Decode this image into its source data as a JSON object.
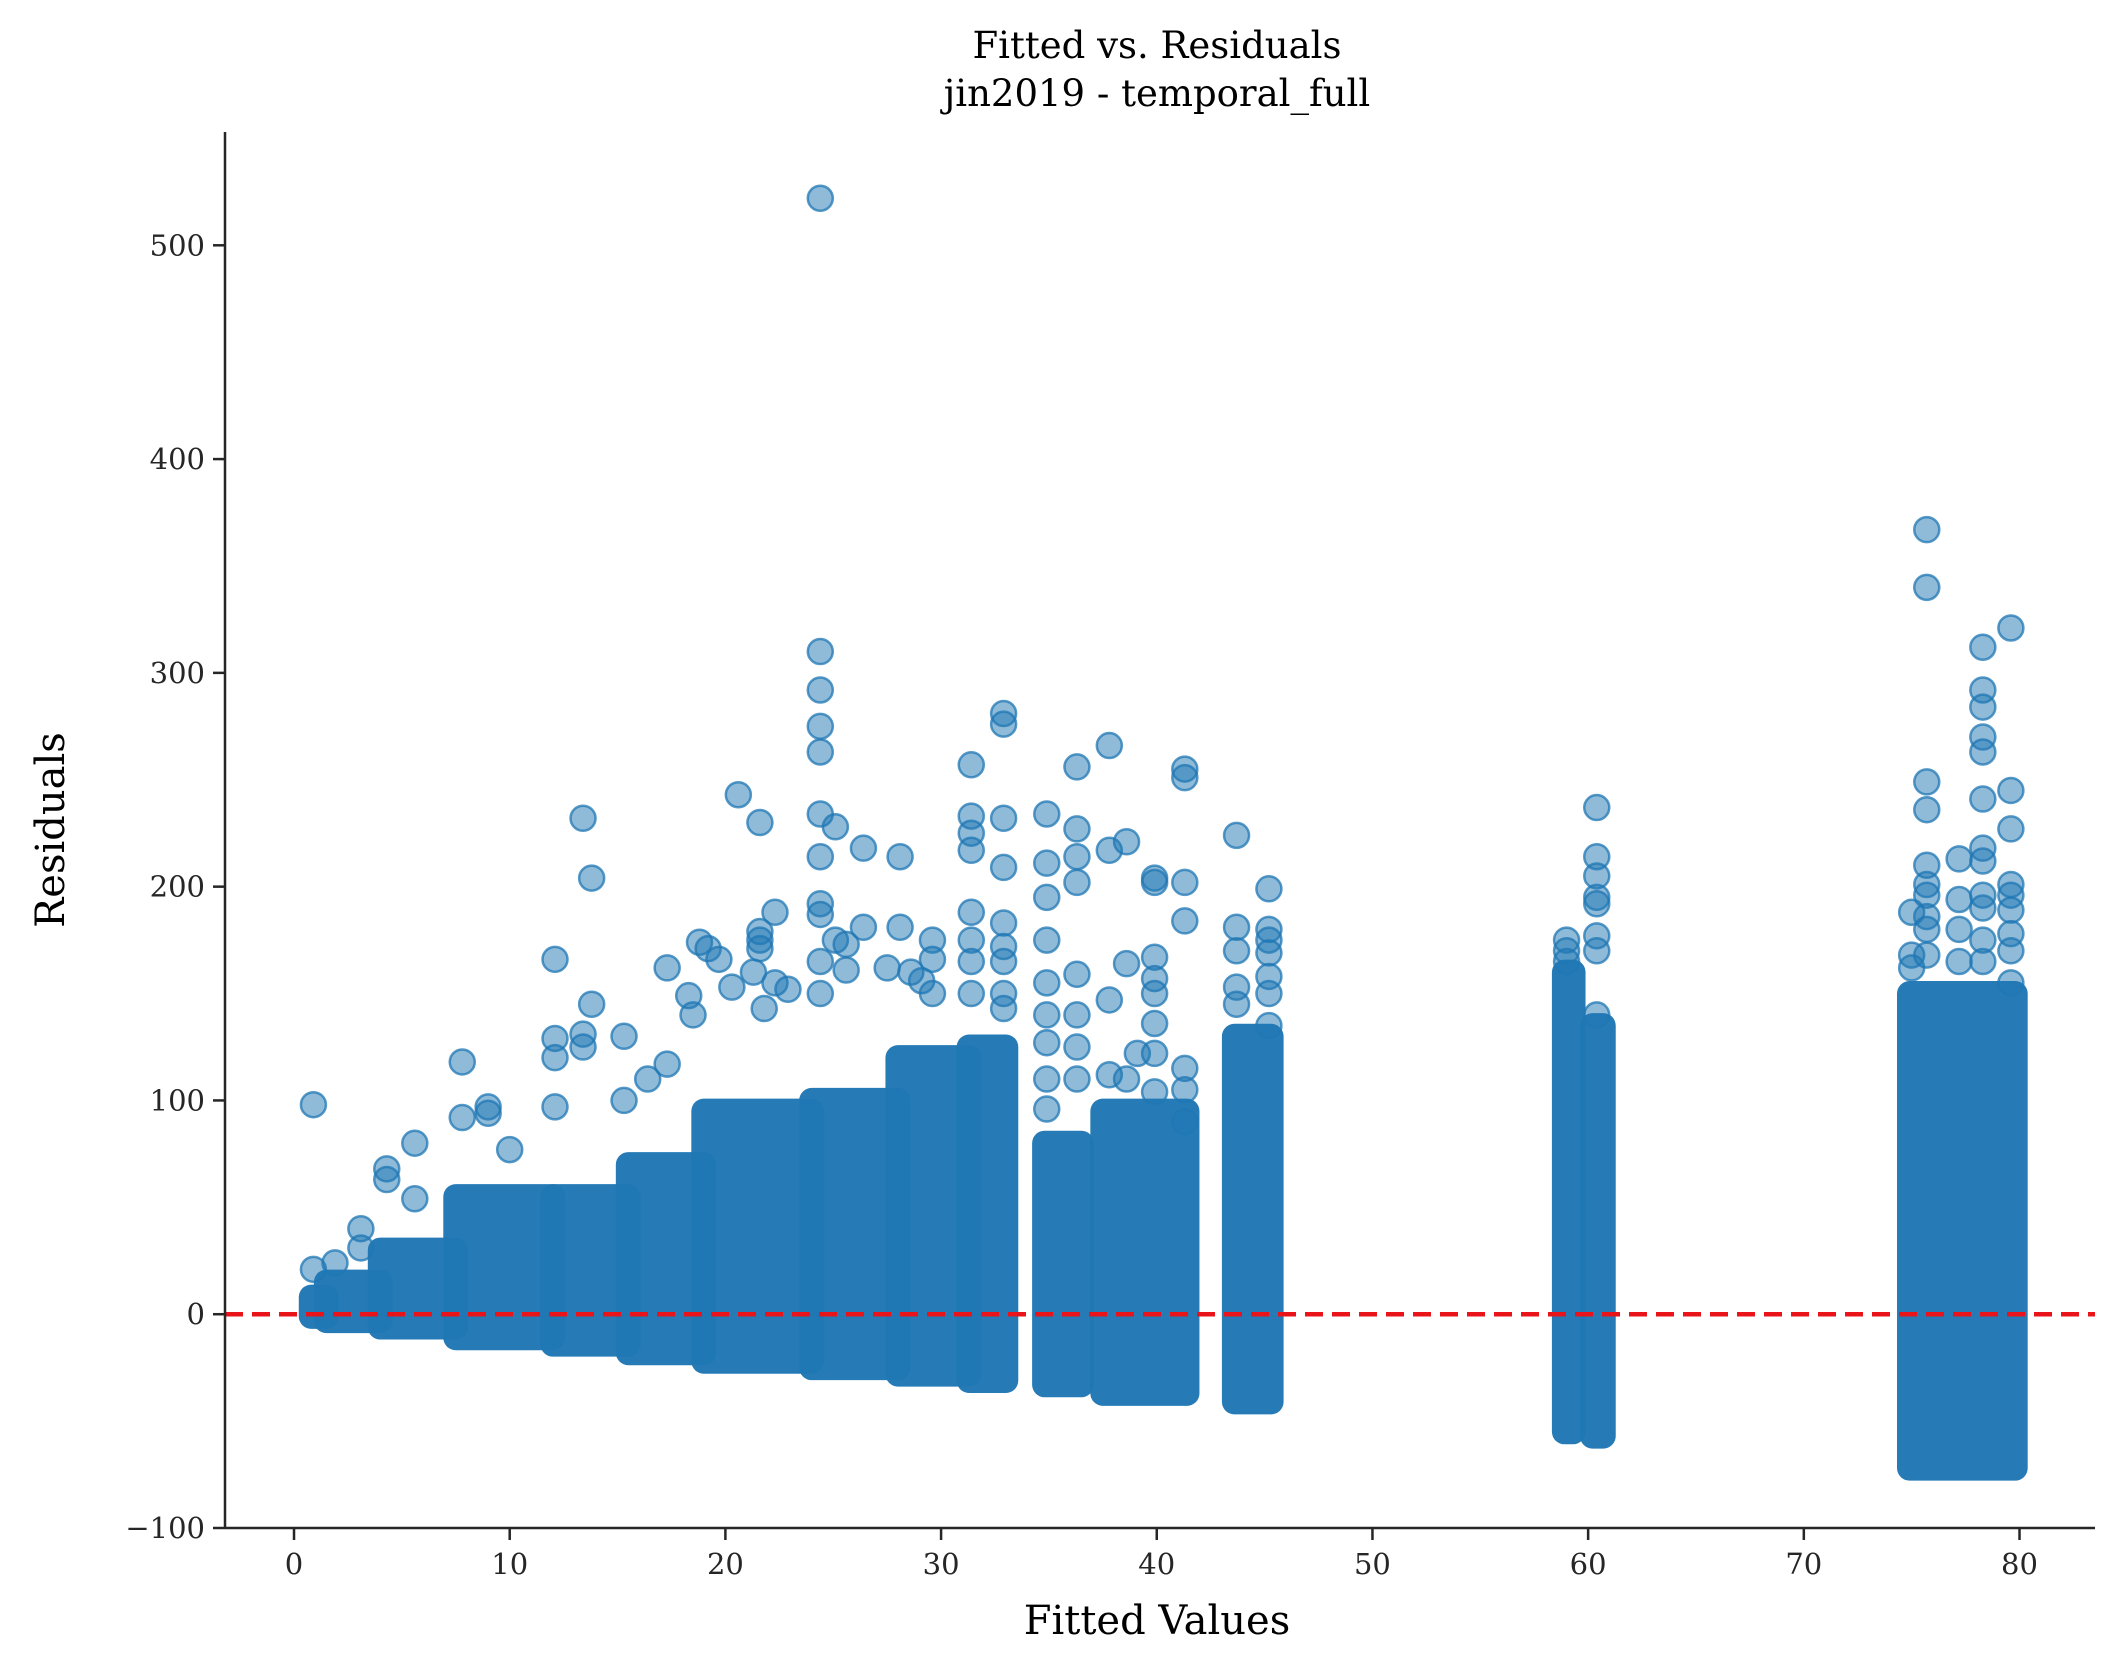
{
  "chart_data": {
    "type": "scatter",
    "title": "Fitted vs. Residuals",
    "subtitle": "jin2019 - temporal_full",
    "xlabel": "Fitted Values",
    "ylabel": "Residuals",
    "xlim": [
      -3.2,
      83.5
    ],
    "ylim": [
      -100,
      553
    ],
    "xticks": [
      0,
      10,
      20,
      30,
      40,
      50,
      60,
      70,
      80
    ],
    "yticks": [
      -100,
      0,
      100,
      200,
      300,
      400,
      500
    ],
    "xtick_labels": [
      "0",
      "10",
      "20",
      "30",
      "40",
      "50",
      "60",
      "70",
      "80"
    ],
    "ytick_labels": [
      "−100",
      "0",
      "100",
      "200",
      "300",
      "400",
      "500"
    ],
    "grid": false,
    "reference_line": {
      "y": 0,
      "style": "dashed",
      "color": "#e8141a"
    },
    "marker_color": "#1f77b4",
    "marker_alpha": 0.5,
    "dense_bands": [
      {
        "x0": 0.8,
        "x1": 1.5,
        "ymin": -1,
        "ymax": 8
      },
      {
        "x0": 1.5,
        "x1": 4.0,
        "ymin": -3,
        "ymax": 15
      },
      {
        "x0": 4.0,
        "x1": 7.5,
        "ymin": -6,
        "ymax": 30
      },
      {
        "x0": 7.5,
        "x1": 12.0,
        "ymin": -11,
        "ymax": 55
      },
      {
        "x0": 12.0,
        "x1": 15.5,
        "ymin": -14,
        "ymax": 55
      },
      {
        "x0": 15.5,
        "x1": 19.0,
        "ymin": -18,
        "ymax": 70
      },
      {
        "x0": 19.0,
        "x1": 24.0,
        "ymin": -22,
        "ymax": 95
      },
      {
        "x0": 24.0,
        "x1": 28.0,
        "ymin": -25,
        "ymax": 100
      },
      {
        "x0": 28.0,
        "x1": 31.3,
        "ymin": -28,
        "ymax": 120
      },
      {
        "x0": 31.3,
        "x1": 33.0,
        "ymin": -31,
        "ymax": 125
      },
      {
        "x0": 34.8,
        "x1": 36.5,
        "ymin": -33,
        "ymax": 80
      },
      {
        "x0": 37.5,
        "x1": 41.4,
        "ymin": -37,
        "ymax": 95
      },
      {
        "x0": 43.6,
        "x1": 45.3,
        "ymin": -41,
        "ymax": 130
      },
      {
        "x0": 58.9,
        "x1": 59.3,
        "ymin": -55,
        "ymax": 160
      },
      {
        "x0": 60.2,
        "x1": 60.7,
        "ymin": -57,
        "ymax": 135
      },
      {
        "x0": 74.9,
        "x1": 79.8,
        "ymin": -72,
        "ymax": 150
      }
    ],
    "points": [
      {
        "x": 0.9,
        "y": 98
      },
      {
        "x": 0.9,
        "y": 21
      },
      {
        "x": 1.9,
        "y": 24
      },
      {
        "x": 3.1,
        "y": 40
      },
      {
        "x": 3.1,
        "y": 31
      },
      {
        "x": 4.3,
        "y": 68
      },
      {
        "x": 4.3,
        "y": 63
      },
      {
        "x": 5.6,
        "y": 80
      },
      {
        "x": 5.6,
        "y": 54
      },
      {
        "x": 7.8,
        "y": 118
      },
      {
        "x": 7.8,
        "y": 92
      },
      {
        "x": 9.0,
        "y": 97
      },
      {
        "x": 9.0,
        "y": 94
      },
      {
        "x": 10.0,
        "y": 77
      },
      {
        "x": 12.1,
        "y": 166
      },
      {
        "x": 12.1,
        "y": 129
      },
      {
        "x": 12.1,
        "y": 120
      },
      {
        "x": 12.1,
        "y": 97
      },
      {
        "x": 13.4,
        "y": 232
      },
      {
        "x": 13.4,
        "y": 131
      },
      {
        "x": 13.4,
        "y": 125
      },
      {
        "x": 13.8,
        "y": 204
      },
      {
        "x": 13.8,
        "y": 145
      },
      {
        "x": 15.3,
        "y": 130
      },
      {
        "x": 15.3,
        "y": 100
      },
      {
        "x": 16.4,
        "y": 110
      },
      {
        "x": 17.3,
        "y": 162
      },
      {
        "x": 17.3,
        "y": 117
      },
      {
        "x": 18.3,
        "y": 149
      },
      {
        "x": 18.5,
        "y": 140
      },
      {
        "x": 18.8,
        "y": 174
      },
      {
        "x": 19.2,
        "y": 171
      },
      {
        "x": 19.7,
        "y": 166
      },
      {
        "x": 20.3,
        "y": 153
      },
      {
        "x": 20.6,
        "y": 243
      },
      {
        "x": 21.6,
        "y": 230
      },
      {
        "x": 21.6,
        "y": 179
      },
      {
        "x": 21.6,
        "y": 175
      },
      {
        "x": 21.6,
        "y": 171
      },
      {
        "x": 21.3,
        "y": 160
      },
      {
        "x": 22.3,
        "y": 188
      },
      {
        "x": 22.3,
        "y": 155
      },
      {
        "x": 22.9,
        "y": 152
      },
      {
        "x": 21.8,
        "y": 143
      },
      {
        "x": 24.4,
        "y": 522
      },
      {
        "x": 24.4,
        "y": 310
      },
      {
        "x": 24.4,
        "y": 292
      },
      {
        "x": 24.4,
        "y": 275
      },
      {
        "x": 24.4,
        "y": 263
      },
      {
        "x": 24.4,
        "y": 234
      },
      {
        "x": 24.4,
        "y": 214
      },
      {
        "x": 24.4,
        "y": 192
      },
      {
        "x": 24.4,
        "y": 187
      },
      {
        "x": 24.4,
        "y": 165
      },
      {
        "x": 24.4,
        "y": 150
      },
      {
        "x": 25.1,
        "y": 228
      },
      {
        "x": 25.1,
        "y": 175
      },
      {
        "x": 25.6,
        "y": 173
      },
      {
        "x": 25.6,
        "y": 161
      },
      {
        "x": 26.4,
        "y": 218
      },
      {
        "x": 26.4,
        "y": 181
      },
      {
        "x": 27.5,
        "y": 162
      },
      {
        "x": 28.1,
        "y": 214
      },
      {
        "x": 28.1,
        "y": 181
      },
      {
        "x": 28.6,
        "y": 160
      },
      {
        "x": 29.1,
        "y": 156
      },
      {
        "x": 29.6,
        "y": 175
      },
      {
        "x": 29.6,
        "y": 166
      },
      {
        "x": 29.6,
        "y": 150
      },
      {
        "x": 31.4,
        "y": 257
      },
      {
        "x": 31.4,
        "y": 233
      },
      {
        "x": 31.4,
        "y": 225
      },
      {
        "x": 31.4,
        "y": 217
      },
      {
        "x": 31.4,
        "y": 188
      },
      {
        "x": 31.4,
        "y": 175
      },
      {
        "x": 31.4,
        "y": 165
      },
      {
        "x": 31.4,
        "y": 150
      },
      {
        "x": 32.9,
        "y": 281
      },
      {
        "x": 32.9,
        "y": 276
      },
      {
        "x": 32.9,
        "y": 232
      },
      {
        "x": 32.9,
        "y": 209
      },
      {
        "x": 32.9,
        "y": 183
      },
      {
        "x": 32.9,
        "y": 172
      },
      {
        "x": 32.9,
        "y": 165
      },
      {
        "x": 32.9,
        "y": 150
      },
      {
        "x": 32.9,
        "y": 143
      },
      {
        "x": 34.9,
        "y": 234
      },
      {
        "x": 34.9,
        "y": 211
      },
      {
        "x": 34.9,
        "y": 195
      },
      {
        "x": 34.9,
        "y": 175
      },
      {
        "x": 34.9,
        "y": 155
      },
      {
        "x": 34.9,
        "y": 140
      },
      {
        "x": 34.9,
        "y": 127
      },
      {
        "x": 34.9,
        "y": 110
      },
      {
        "x": 34.9,
        "y": 96
      },
      {
        "x": 36.3,
        "y": 256
      },
      {
        "x": 36.3,
        "y": 227
      },
      {
        "x": 36.3,
        "y": 214
      },
      {
        "x": 36.3,
        "y": 202
      },
      {
        "x": 36.3,
        "y": 159
      },
      {
        "x": 36.3,
        "y": 140
      },
      {
        "x": 36.3,
        "y": 125
      },
      {
        "x": 36.3,
        "y": 110
      },
      {
        "x": 37.8,
        "y": 266
      },
      {
        "x": 37.8,
        "y": 217
      },
      {
        "x": 37.8,
        "y": 147
      },
      {
        "x": 37.8,
        "y": 112
      },
      {
        "x": 38.6,
        "y": 221
      },
      {
        "x": 38.6,
        "y": 164
      },
      {
        "x": 38.6,
        "y": 110
      },
      {
        "x": 39.1,
        "y": 122
      },
      {
        "x": 39.9,
        "y": 204
      },
      {
        "x": 39.9,
        "y": 202
      },
      {
        "x": 39.9,
        "y": 167
      },
      {
        "x": 39.9,
        "y": 157
      },
      {
        "x": 39.9,
        "y": 150
      },
      {
        "x": 39.9,
        "y": 136
      },
      {
        "x": 39.9,
        "y": 122
      },
      {
        "x": 39.9,
        "y": 104
      },
      {
        "x": 41.3,
        "y": 255
      },
      {
        "x": 41.3,
        "y": 251
      },
      {
        "x": 41.3,
        "y": 202
      },
      {
        "x": 41.3,
        "y": 184
      },
      {
        "x": 41.3,
        "y": 115
      },
      {
        "x": 41.3,
        "y": 105
      },
      {
        "x": 41.3,
        "y": 90
      },
      {
        "x": 43.7,
        "y": 224
      },
      {
        "x": 43.7,
        "y": 181
      },
      {
        "x": 43.7,
        "y": 170
      },
      {
        "x": 43.7,
        "y": 153
      },
      {
        "x": 43.7,
        "y": 145
      },
      {
        "x": 45.2,
        "y": 199
      },
      {
        "x": 45.2,
        "y": 180
      },
      {
        "x": 45.2,
        "y": 175
      },
      {
        "x": 45.2,
        "y": 169
      },
      {
        "x": 45.2,
        "y": 158
      },
      {
        "x": 45.2,
        "y": 150
      },
      {
        "x": 45.2,
        "y": 135
      },
      {
        "x": 59.0,
        "y": 175
      },
      {
        "x": 59.0,
        "y": 170
      },
      {
        "x": 59.0,
        "y": 165
      },
      {
        "x": 60.4,
        "y": 237
      },
      {
        "x": 60.4,
        "y": 214
      },
      {
        "x": 60.4,
        "y": 205
      },
      {
        "x": 60.4,
        "y": 195
      },
      {
        "x": 60.4,
        "y": 192
      },
      {
        "x": 60.4,
        "y": 177
      },
      {
        "x": 60.4,
        "y": 170
      },
      {
        "x": 60.4,
        "y": 140
      },
      {
        "x": 75.0,
        "y": 188
      },
      {
        "x": 75.0,
        "y": 168
      },
      {
        "x": 75.0,
        "y": 162
      },
      {
        "x": 75.7,
        "y": 367
      },
      {
        "x": 75.7,
        "y": 340
      },
      {
        "x": 75.7,
        "y": 249
      },
      {
        "x": 75.7,
        "y": 236
      },
      {
        "x": 75.7,
        "y": 210
      },
      {
        "x": 75.7,
        "y": 201
      },
      {
        "x": 75.7,
        "y": 196
      },
      {
        "x": 75.7,
        "y": 186
      },
      {
        "x": 75.7,
        "y": 180
      },
      {
        "x": 75.7,
        "y": 168
      },
      {
        "x": 77.2,
        "y": 213
      },
      {
        "x": 77.2,
        "y": 194
      },
      {
        "x": 77.2,
        "y": 180
      },
      {
        "x": 77.2,
        "y": 165
      },
      {
        "x": 78.3,
        "y": 312
      },
      {
        "x": 78.3,
        "y": 292
      },
      {
        "x": 78.3,
        "y": 284
      },
      {
        "x": 78.3,
        "y": 270
      },
      {
        "x": 78.3,
        "y": 263
      },
      {
        "x": 78.3,
        "y": 241
      },
      {
        "x": 78.3,
        "y": 218
      },
      {
        "x": 78.3,
        "y": 212
      },
      {
        "x": 78.3,
        "y": 196
      },
      {
        "x": 78.3,
        "y": 190
      },
      {
        "x": 78.3,
        "y": 175
      },
      {
        "x": 78.3,
        "y": 165
      },
      {
        "x": 79.6,
        "y": 321
      },
      {
        "x": 79.6,
        "y": 245
      },
      {
        "x": 79.6,
        "y": 227
      },
      {
        "x": 79.6,
        "y": 201
      },
      {
        "x": 79.6,
        "y": 196
      },
      {
        "x": 79.6,
        "y": 189
      },
      {
        "x": 79.6,
        "y": 178
      },
      {
        "x": 79.6,
        "y": 170
      },
      {
        "x": 79.6,
        "y": 155
      }
    ]
  }
}
